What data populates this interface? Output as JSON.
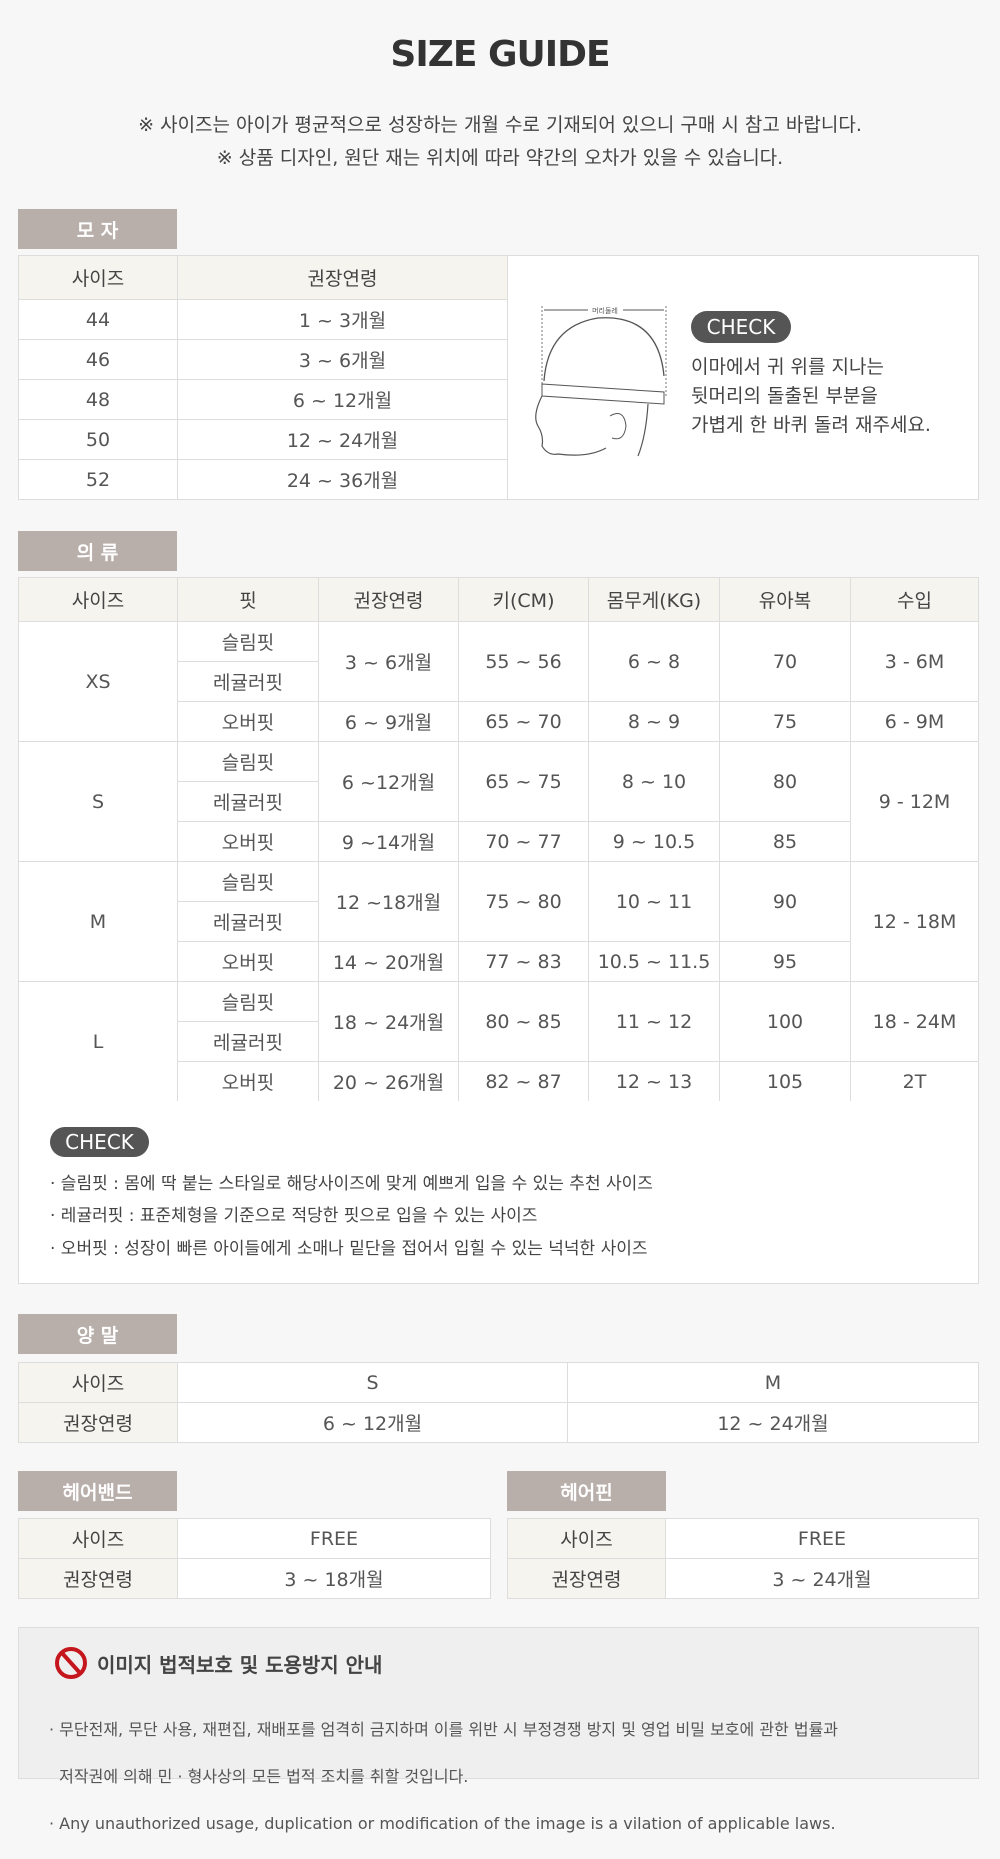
{
  "title": "SIZE GUIDE",
  "notes": [
    "※ 사이즈는 아이가 평균적으로 성장하는 개월 수로 기재되어 있으니 구매 시 참고 바랍니다.",
    "※ 상품 디자인, 원단 재는 위치에 따라 약간의 오차가 있을 수 있습니다."
  ],
  "hat": {
    "tab": "모 자",
    "headers": [
      "사이즈",
      "권장연령"
    ],
    "rows": [
      [
        "44",
        "1 ~ 3개월"
      ],
      [
        "46",
        "3 ~ 6개월"
      ],
      [
        "48",
        "6 ~ 12개월"
      ],
      [
        "50",
        "12 ~ 24개월"
      ],
      [
        "52",
        "24 ~ 36개월"
      ]
    ],
    "illustration_label": "머리둘레",
    "check": "CHECK",
    "check_lines": [
      "이마에서 귀 위를 지나는",
      "뒷머리의 돌출된 부분을",
      "가볍게 한 바퀴 돌려 재주세요."
    ]
  },
  "clothing": {
    "tab": "의 류",
    "headers": [
      "사이즈",
      "핏",
      "권장연령",
      "키(CM)",
      "몸무게(KG)",
      "유아복",
      "수입"
    ],
    "fits": [
      "슬림핏",
      "레귤러핏",
      "오버핏"
    ],
    "groups": [
      {
        "size": "XS",
        "a": [
          "3 ~ 6개월",
          "6 ~ 9개월"
        ],
        "h": [
          "55 ~ 56",
          "65 ~ 70"
        ],
        "w": [
          "6 ~ 8",
          "8 ~ 9"
        ],
        "b": [
          "70",
          "75"
        ],
        "i": [
          "3 - 6M",
          "6 - 9M"
        ]
      },
      {
        "size": "S",
        "a": [
          "6 ~12개월",
          "9 ~14개월"
        ],
        "h": [
          "65 ~ 75",
          "70 ~ 77"
        ],
        "w": [
          "8 ~ 10",
          "9 ~ 10.5"
        ],
        "b": [
          "80",
          "85"
        ],
        "i": [
          "9 - 12M"
        ]
      },
      {
        "size": "M",
        "a": [
          "12 ~18개월",
          "14 ~ 20개월"
        ],
        "h": [
          "75 ~ 80",
          "77 ~ 83"
        ],
        "w": [
          "10 ~ 11",
          "10.5 ~ 11.5"
        ],
        "b": [
          "90",
          "95"
        ],
        "i": [
          "12 - 18M"
        ]
      },
      {
        "size": "L",
        "a": [
          "18 ~ 24개월",
          "20 ~ 26개월"
        ],
        "h": [
          "80 ~ 85",
          "82 ~ 87"
        ],
        "w": [
          "11 ~ 12",
          "12 ~ 13"
        ],
        "b": [
          "100",
          "105"
        ],
        "i": [
          "18 - 24M",
          "2T"
        ]
      }
    ],
    "check": "CHECK",
    "check_lines": [
      "· 슬림핏 : 몸에 딱 붙는 스타일로 해당사이즈에 맞게 예쁘게 입을 수 있는 추천 사이즈",
      "· 레귤러핏 : 표준체형을 기준으로 적당한 핏으로 입을 수 있는 사이즈",
      "· 오버핏 : 성장이 빠른 아이들에게 소매나 밑단을 접어서 입힐 수 있는 넉넉한 사이즈"
    ]
  },
  "socks": {
    "tab": "양 말",
    "row_labels": [
      "사이즈",
      "권장연령"
    ],
    "sizes": [
      "S",
      "M"
    ],
    "ages": [
      "6 ~ 12개월",
      "12 ~ 24개월"
    ]
  },
  "hairband": {
    "tab": "헤어밴드",
    "row_labels": [
      "사이즈",
      "권장연령"
    ],
    "size": "FREE",
    "age": "3 ~ 18개월"
  },
  "hairpin": {
    "tab": "헤어핀",
    "row_labels": [
      "사이즈",
      "권장연령"
    ],
    "size": "FREE",
    "age": "3 ~ 24개월"
  },
  "notice": {
    "icon": "prohibited-icon",
    "color": "#c4161c",
    "title": "이미지 법적보호 및 도용방지 안내",
    "lines": [
      "· 무단전재, 무단 사용, 재편집, 재배포를 엄격히 금지하며 이를 위반 시 부정경쟁 방지 및 영업 비밀 보호에 관한 법률과",
      "  저작권에 의해 민 · 형사상의 모든 법적 조치를 취할 것입니다.",
      "· Any unauthorized usage, duplication or modification of the image is a vilation of applicable laws."
    ]
  }
}
